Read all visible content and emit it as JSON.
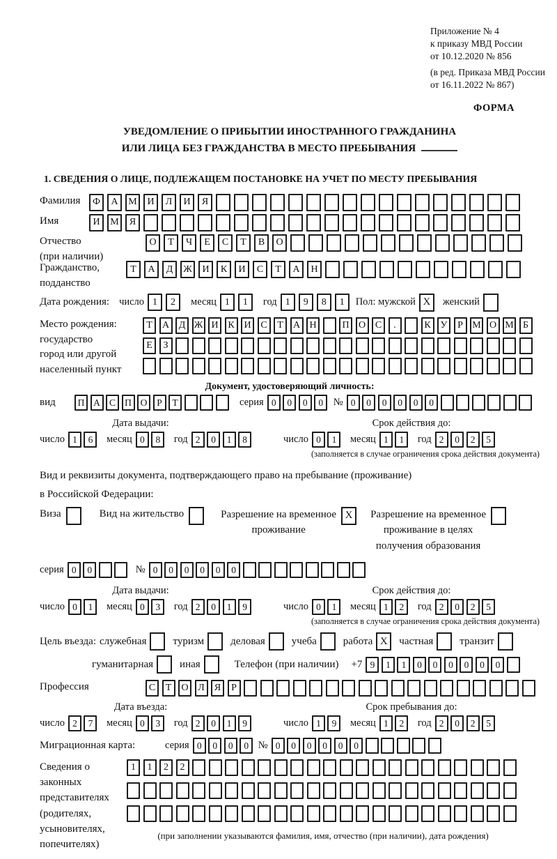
{
  "header": {
    "lines": [
      "Приложение № 4",
      "к приказу МВД России",
      "от 10.12.2020 № 856"
    ],
    "lines2": [
      "(в ред. Приказа МВД России",
      "от 16.11.2022 № 867)"
    ],
    "form_label": "ФОРМА"
  },
  "title": {
    "line1": "УВЕДОМЛЕНИЕ О ПРИБЫТИИ ИНОСТРАННОГО ГРАЖДАНИНА",
    "line2": "ИЛИ ЛИЦА БЕЗ ГРАЖДАНСТВА В МЕСТО ПРЕБЫВАНИЯ"
  },
  "date_labels": {
    "day": "число",
    "month": "месяц",
    "year": "год"
  },
  "section1": {
    "heading": "1. СВЕДЕНИЯ О ЛИЦЕ, ПОДЛЕЖАЩЕМ ПОСТАНОВКЕ НА УЧЕТ ПО МЕСТУ ПРЕБЫВАНИЯ",
    "surname": {
      "label": "Фамилия",
      "cells": {
        "text": "ФАМИЛИЯ",
        "total": 24
      }
    },
    "firstname": {
      "label": "Имя",
      "cells": {
        "text": "ИМЯ",
        "total": 24
      }
    },
    "patronymic": {
      "label": "Отчество",
      "label2": "(при наличии)",
      "cells": {
        "text": "ОТЧЕСТВО",
        "total": 21
      }
    },
    "citizenship": {
      "label": "Гражданство,",
      "label2": "подданство",
      "cells": {
        "text": "ТАДЖИКИСТАН",
        "total": 22
      }
    },
    "birth_date": {
      "label": "Дата рождения:",
      "day": "12",
      "month": "11",
      "year": "1981",
      "sex_label": "Пол: мужской",
      "male": "X",
      "female_label": "женский",
      "female": ""
    },
    "birth_place": {
      "labels": [
        "Место рождения:",
        "государство",
        "город или другой",
        "населенный пункт"
      ],
      "row1": {
        "text": "ТАДЖИКИСТАН ПОС. КУРМОМБ",
        "total": 24
      },
      "row2": {
        "text": "ЕЗ",
        "total": 24
      },
      "row3": {
        "text": "",
        "total": 24
      }
    },
    "identity_doc": {
      "heading": "Документ, удостоверяющий личность:",
      "kind_label": "вид",
      "kind": {
        "text": "ПАСПОРТ",
        "total": 10
      },
      "series_label": "серия",
      "series": {
        "text": "0000",
        "total": 4
      },
      "number_label": "№",
      "number": {
        "text": "000000",
        "total": 12
      },
      "issue": {
        "heading": "Дата выдачи:",
        "day": "16",
        "month": "08",
        "year": "2018"
      },
      "valid": {
        "heading": "Срок действия до:",
        "day": "01",
        "month": "11",
        "year": "2025",
        "note": "(заполняется в случае ограничения срока действия документа)"
      }
    },
    "residence_doc": {
      "intro1": "Вид и реквизиты документа, подтверждающего право на пребывание (проживание)",
      "intro2": "в Российской Федерации:",
      "visa_label": "Виза",
      "visa": "",
      "residence_permit_label": "Вид на жительство",
      "residence_permit": "",
      "temp_permit_label1": "Разрешение на временное",
      "temp_permit_label2": "проживание",
      "temp_permit": "X",
      "edu_permit_label1": "Разрешение на временное",
      "edu_permit_label2": "проживание в целях",
      "edu_permit_label3": "получения образования",
      "edu_permit": "",
      "series_label": "серия",
      "series": {
        "text": "00",
        "total": 4
      },
      "number_label": "№",
      "number": {
        "text": "000000",
        "total": 14
      },
      "issue": {
        "heading": "Дата выдачи:",
        "day": "01",
        "month": "03",
        "year": "2019"
      },
      "valid": {
        "heading": "Срок действия до:",
        "day": "01",
        "month": "12",
        "year": "2025",
        "note": "(заполняется в случае ограничения срока действия документа)"
      }
    },
    "visit": {
      "label": "Цель въезда:",
      "purposes": [
        {
          "label": "служебная",
          "value": ""
        },
        {
          "label": "туризм",
          "value": ""
        },
        {
          "label": "деловая",
          "value": ""
        },
        {
          "label": "учеба",
          "value": ""
        },
        {
          "label": "работа",
          "value": "X"
        },
        {
          "label": "частная",
          "value": ""
        },
        {
          "label": "транзит",
          "value": ""
        },
        {
          "label": "гуманитарная",
          "value": ""
        },
        {
          "label": "иная",
          "value": ""
        }
      ],
      "phone_label": "Телефон (при наличии)",
      "phone_prefix": "+7",
      "phone": {
        "text": "911000000",
        "total": 10
      }
    },
    "profession": {
      "label": "Профессия",
      "cells": {
        "text": "СТОЛЯР",
        "total": 24
      }
    },
    "entry": {
      "issue": {
        "heading": "Дата въезда:",
        "day": "27",
        "month": "03",
        "year": "2019"
      },
      "valid": {
        "heading": "Срок пребывания до:",
        "day": "19",
        "month": "12",
        "year": "2025"
      }
    },
    "migration_card": {
      "label": "Миграционная карта:",
      "series_label": "серия",
      "series": {
        "text": "0000",
        "total": 4
      },
      "number_label": "№",
      "number": {
        "text": "000000",
        "total": 11
      }
    },
    "representatives": {
      "labels": [
        "Сведения о",
        "законных",
        "представителях",
        "(родителях,",
        "усыновителях,",
        "попечителях)"
      ],
      "row1": {
        "text": "1122",
        "total": 24
      },
      "row2": {
        "text": "",
        "total": 24
      },
      "row3": {
        "text": "",
        "total": 24
      },
      "note": "(при заполнении указываются фамилия, имя, отчество (при наличии), дата рождения)"
    }
  }
}
